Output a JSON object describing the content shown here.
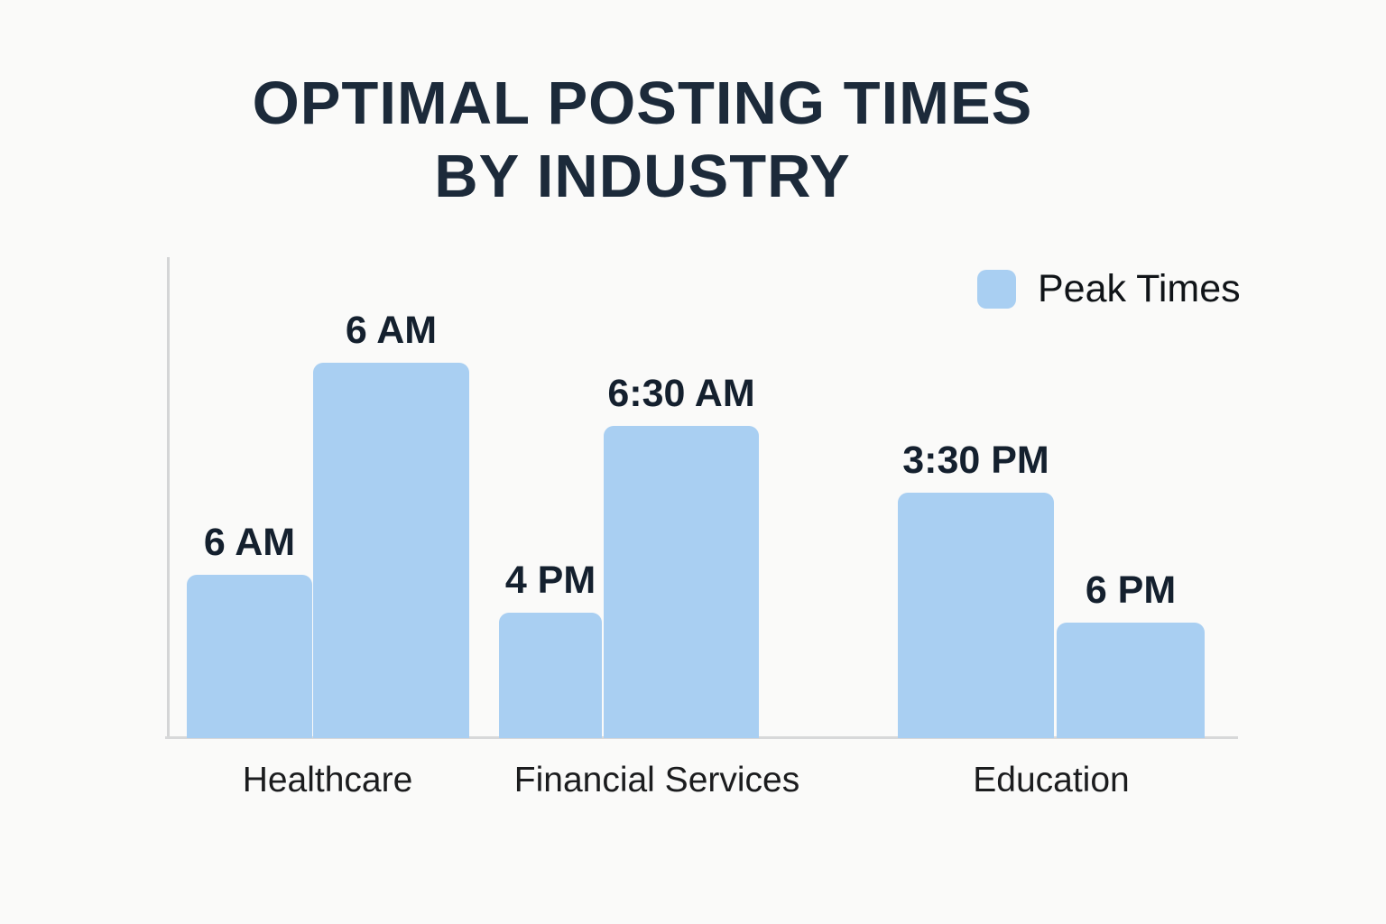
{
  "title": {
    "line1": "OPTIMAL POSTING TIMES",
    "line2": "BY INDUSTRY"
  },
  "legend": {
    "label": "Peak Times"
  },
  "colors": {
    "background": "#fafaf9",
    "bar_fill": "#a9cff2",
    "title_text": "#1c2a3a",
    "value_label_text": "#14202e",
    "category_text": "#1b1c1e",
    "axis_line": "#d7d8d9"
  },
  "chart_data": {
    "type": "bar",
    "title": "OPTIMAL POSTING TIMES BY INDUSTRY",
    "xlabel": "",
    "ylabel": "",
    "y_axis_ticks": "none (no numeric scale shown)",
    "grid": false,
    "legend_entries": [
      "Peak Times"
    ],
    "legend_position": "top-right",
    "categories": [
      "Healthcare",
      "Financial Services",
      "Education"
    ],
    "groups": [
      {
        "category": "Healthcare",
        "bars": [
          {
            "time_label": "6 AM",
            "relative_height": 0.34
          },
          {
            "time_label": "6 AM",
            "relative_height": 0.78
          }
        ]
      },
      {
        "category": "Financial Services",
        "bars": [
          {
            "time_label": "4 PM",
            "relative_height": 0.26
          },
          {
            "time_label": "6:30 AM",
            "relative_height": 0.65
          }
        ]
      },
      {
        "category": "Education",
        "bars": [
          {
            "time_label": "3:30 PM",
            "relative_height": 0.51
          },
          {
            "time_label": "6 PM",
            "relative_height": 0.24
          }
        ]
      }
    ]
  }
}
